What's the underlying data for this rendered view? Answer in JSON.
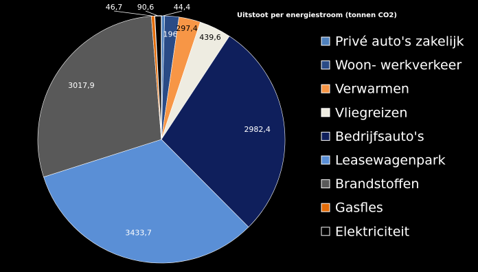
{
  "chart_data": {
    "type": "pie",
    "title": "Uitstoot per energiestroom (tonnen CO2)",
    "categories": [
      "Privé auto's zakelijk",
      "Woon- werkverkeer",
      "Verwarmen",
      "Vliegreizen",
      "Bedrijfsauto's",
      "Leasewagenpark",
      "Brandstoffen",
      "Gasfles",
      "Elektriciteit"
    ],
    "values": [
      44.4,
      196,
      297.4,
      439.6,
      2982.4,
      3433.7,
      3017.9,
      46.7,
      90.6
    ],
    "value_labels": [
      "44,4",
      "196",
      "297,4",
      "439,6",
      "2982,4",
      "3433,7",
      "3017,9",
      "46,7",
      "90,6"
    ],
    "colors": [
      "#4f81bd",
      "#2a4b86",
      "#f79646",
      "#eeece1",
      "#0f1f5c",
      "#5a8fd6",
      "#595959",
      "#e36c09",
      "#000000"
    ]
  }
}
